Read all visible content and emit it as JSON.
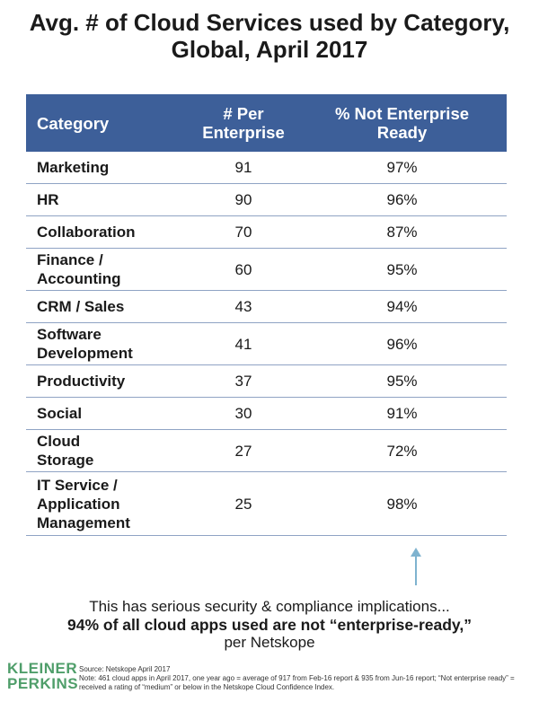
{
  "title_line1": "Avg. # of Cloud Services used by Category,",
  "title_line2": "Global, April 2017",
  "table": {
    "headers": {
      "category": "Category",
      "per_enterprise_line1": "# Per",
      "per_enterprise_line2": "Enterprise",
      "not_ready_line1": "% Not Enterprise",
      "not_ready_line2": "Ready"
    },
    "rows": [
      {
        "lines": [
          "Marketing"
        ],
        "per_enterprise": "91",
        "not_ready": "97%"
      },
      {
        "lines": [
          "HR"
        ],
        "per_enterprise": "90",
        "not_ready": "96%"
      },
      {
        "lines": [
          "Collaboration"
        ],
        "per_enterprise": "70",
        "not_ready": "87%"
      },
      {
        "lines": [
          "Finance /",
          "Accounting"
        ],
        "per_enterprise": "60",
        "not_ready": "95%"
      },
      {
        "lines": [
          "CRM / Sales"
        ],
        "per_enterprise": "43",
        "not_ready": "94%"
      },
      {
        "lines": [
          "Software",
          "Development"
        ],
        "per_enterprise": "41",
        "not_ready": "96%"
      },
      {
        "lines": [
          "Productivity"
        ],
        "per_enterprise": "37",
        "not_ready": "95%"
      },
      {
        "lines": [
          "Social"
        ],
        "per_enterprise": "30",
        "not_ready": "91%"
      },
      {
        "lines": [
          "Cloud",
          "Storage"
        ],
        "per_enterprise": "27",
        "not_ready": "72%"
      },
      {
        "lines": [
          "IT Service /",
          "Application",
          "Management"
        ],
        "per_enterprise": "25",
        "not_ready": "98%"
      }
    ]
  },
  "chart_data": {
    "type": "table",
    "title": "Avg. # of Cloud Services used by Category, Global, April 2017",
    "columns": [
      "Category",
      "# Per Enterprise",
      "% Not Enterprise Ready"
    ],
    "categories": [
      "Marketing",
      "HR",
      "Collaboration",
      "Finance / Accounting",
      "CRM / Sales",
      "Software Development",
      "Productivity",
      "Social",
      "Cloud Storage",
      "IT Service / Application Management"
    ],
    "series": [
      {
        "name": "# Per Enterprise",
        "values": [
          91,
          90,
          70,
          60,
          43,
          41,
          37,
          30,
          27,
          25
        ]
      },
      {
        "name": "% Not Enterprise Ready",
        "values": [
          97,
          96,
          87,
          95,
          94,
          96,
          95,
          91,
          72,
          98
        ]
      }
    ]
  },
  "callout": {
    "line1": "This has serious security & compliance implications...",
    "line2": "94% of all cloud apps used are not “enterprise-ready,”",
    "line3": "per Netskope"
  },
  "logo": {
    "line1": "KLEINER",
    "line2": "PERKINS"
  },
  "source": {
    "line1": "Source: Netskope April 2017",
    "line2": "Note: 461 cloud apps in April 2017, one year ago = average of 917 from Feb-16 report & 935 from Jun-16 report; “Not enterprise ready” = received a rating of “medium” or below in the Netskope Cloud Confidence Index."
  },
  "colors": {
    "header_bg": "#3d5f99",
    "arrow": "#7fb3cf",
    "logo": "#4f9e6a"
  }
}
